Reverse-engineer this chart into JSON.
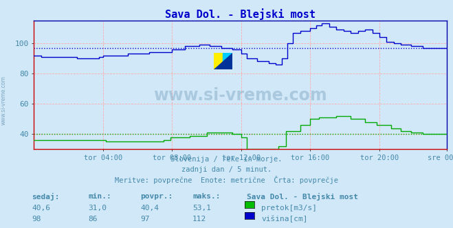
{
  "title": "Sava Dol. - Blejski most",
  "background_color": "#d0e8f8",
  "grid_color": "#ffaaaa",
  "text_color": "#4488aa",
  "title_color": "#0000cc",
  "subtitle_lines": [
    "Slovenija / reke in morje.",
    "zadnji dan / 5 minut.",
    "Meritve: povprečne  Enote: metrične  Črta: povprečje"
  ],
  "table_header": [
    "sedaj:",
    "min.:",
    "povpr.:",
    "maks.:"
  ],
  "table_station": "Sava Dol. - Blejski most",
  "table_row1": [
    "40,6",
    "31,0",
    "40,4",
    "53,1"
  ],
  "table_row2": [
    "98",
    "86",
    "97",
    "112"
  ],
  "legend_labels": [
    "pretok[m3/s]",
    "višina[cm]"
  ],
  "legend_colors": [
    "#00bb00",
    "#0000cc"
  ],
  "pretok_color": "#00aa00",
  "visina_color": "#0000cc",
  "avg_pretok_value": 40.4,
  "avg_visina_value": 97,
  "ylim": [
    30,
    115
  ],
  "yticks": [
    40,
    60,
    80,
    100
  ],
  "num_points": 288,
  "watermark_color": "#4a7a9b",
  "border_color": "#0000aa",
  "x_tick_labels": [
    "tor 04:00",
    "tor 08:00",
    "tor 12:00",
    "tor 16:00",
    "tor 20:00",
    "sre 00:00"
  ],
  "x_tick_positions": [
    48,
    96,
    144,
    192,
    240,
    287
  ]
}
